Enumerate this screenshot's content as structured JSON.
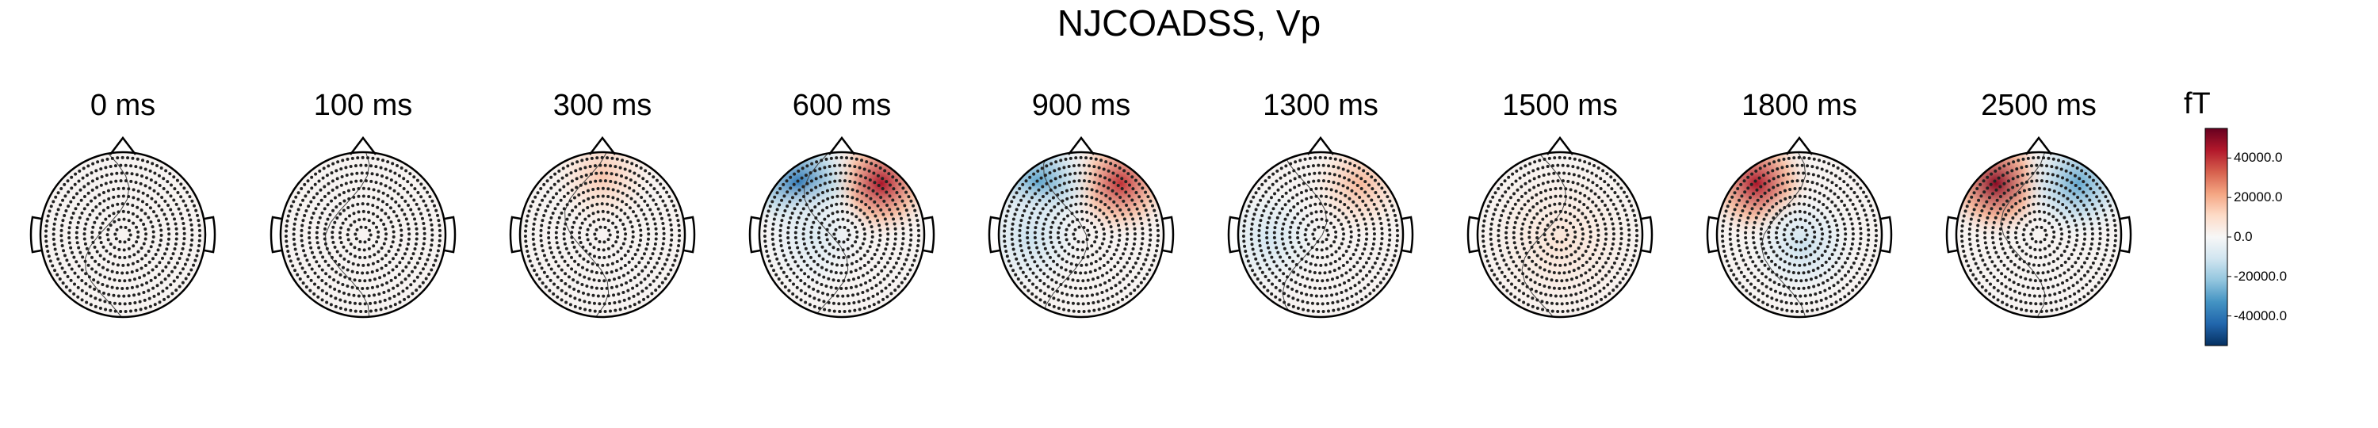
{
  "chart_data": {
    "type": "heatmap",
    "title": "NJCOADSS, Vp",
    "panels": [
      {
        "time": "0 ms",
        "pattern": []
      },
      {
        "time": "100 ms",
        "pattern": []
      },
      {
        "time": "300 ms",
        "pattern": [
          {
            "region": "top-center",
            "value": 15000
          }
        ]
      },
      {
        "time": "600 ms",
        "pattern": [
          {
            "region": "top-right",
            "value": 45000
          },
          {
            "region": "top-left",
            "value": -40000
          },
          {
            "region": "center-left",
            "value": -8000
          }
        ]
      },
      {
        "time": "900 ms",
        "pattern": [
          {
            "region": "top-right",
            "value": 40000
          },
          {
            "region": "top-left",
            "value": -30000
          },
          {
            "region": "left",
            "value": -12000
          }
        ]
      },
      {
        "time": "1300 ms",
        "pattern": [
          {
            "region": "top-right",
            "value": 18000
          },
          {
            "region": "left",
            "value": -10000
          }
        ]
      },
      {
        "time": "1500 ms",
        "pattern": [
          {
            "region": "broad",
            "value": 8000
          }
        ]
      },
      {
        "time": "1800 ms",
        "pattern": [
          {
            "region": "top-left",
            "value": 45000
          },
          {
            "region": "center",
            "value": -12000
          }
        ]
      },
      {
        "time": "2500 ms",
        "pattern": [
          {
            "region": "top-left",
            "value": 50000
          },
          {
            "region": "top-right",
            "value": -28000
          }
        ]
      }
    ],
    "colorbar": {
      "unit": "fT",
      "range": [
        -55000,
        55000
      ],
      "ticks": [
        "40000.0",
        "20000.0",
        "0.0",
        "-20000.0",
        "-40000.0"
      ],
      "tick_values": [
        40000,
        20000,
        0,
        -20000,
        -40000
      ],
      "colormap": [
        "#053061",
        "#2166ac",
        "#4393c3",
        "#92c5de",
        "#d1e5f0",
        "#f7f7f7",
        "#fddbc7",
        "#f4a582",
        "#d6604d",
        "#b2182b",
        "#67001f"
      ]
    }
  }
}
